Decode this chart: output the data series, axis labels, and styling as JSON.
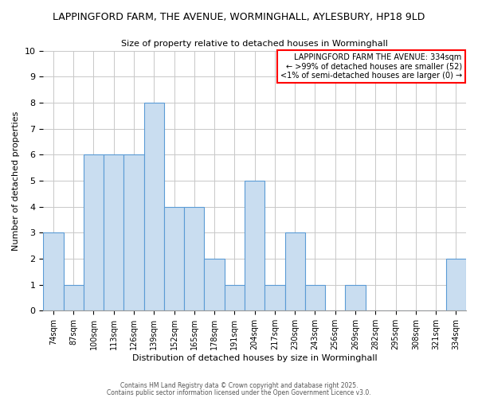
{
  "title": "LAPPINGFORD FARM, THE AVENUE, WORMINGHALL, AYLESBURY, HP18 9LD",
  "subtitle": "Size of property relative to detached houses in Worminghall",
  "xlabel": "Distribution of detached houses by size in Worminghall",
  "ylabel": "Number of detached properties",
  "categories": [
    "74sqm",
    "87sqm",
    "100sqm",
    "113sqm",
    "126sqm",
    "139sqm",
    "152sqm",
    "165sqm",
    "178sqm",
    "191sqm",
    "204sqm",
    "217sqm",
    "230sqm",
    "243sqm",
    "256sqm",
    "269sqm",
    "282sqm",
    "295sqm",
    "308sqm",
    "321sqm",
    "334sqm"
  ],
  "values": [
    3,
    1,
    6,
    6,
    6,
    8,
    4,
    4,
    2,
    1,
    5,
    1,
    3,
    1,
    0,
    1,
    0,
    0,
    0,
    0,
    2
  ],
  "bar_color": "#c9ddf0",
  "bar_edgecolor": "#5b9bd5",
  "ylim": [
    0,
    10
  ],
  "yticks": [
    0,
    1,
    2,
    3,
    4,
    5,
    6,
    7,
    8,
    9,
    10
  ],
  "legend_title": "LAPPINGFORD FARM THE AVENUE: 334sqm",
  "legend_line1": "← >99% of detached houses are smaller (52)",
  "legend_line2": "<1% of semi-detached houses are larger (0) →",
  "footer_line1": "Contains HM Land Registry data © Crown copyright and database right 2025.",
  "footer_line2": "Contains public sector information licensed under the Open Government Licence v3.0.",
  "background_color": "#ffffff",
  "grid_color": "#c8c8c8"
}
